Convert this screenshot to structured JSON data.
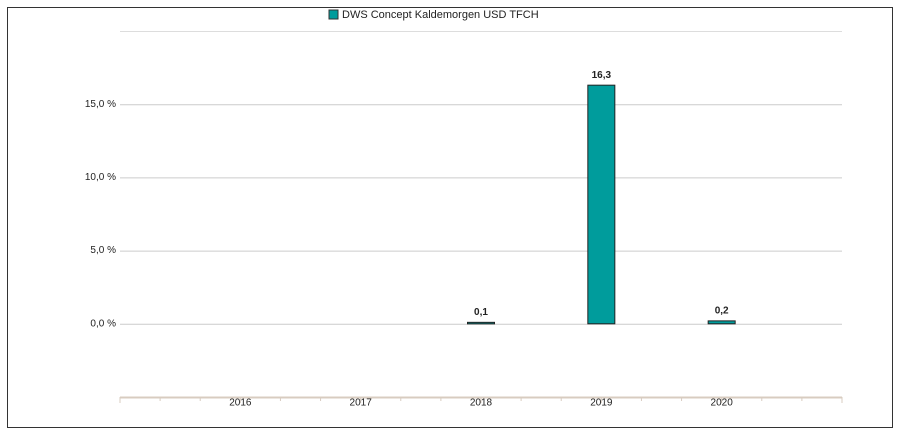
{
  "chart_data": {
    "type": "bar",
    "legend": "DWS Concept Kaldemorgen  USD TFCH",
    "categories": [
      "2016",
      "2017",
      "2018",
      "2019",
      "2020"
    ],
    "values": [
      null,
      null,
      0.1,
      16.3,
      0.2
    ],
    "value_labels": [
      null,
      null,
      "0,1",
      "16,3",
      "0,2"
    ],
    "color": "#009c9c",
    "ylim": [
      -5,
      20
    ],
    "yticks": [
      {
        "value": 0,
        "label": "0,0 %"
      },
      {
        "value": 5,
        "label": "5,0 %"
      },
      {
        "value": 10,
        "label": "10,0 %"
      },
      {
        "value": 15,
        "label": "15,0 %"
      }
    ],
    "grid": true
  }
}
